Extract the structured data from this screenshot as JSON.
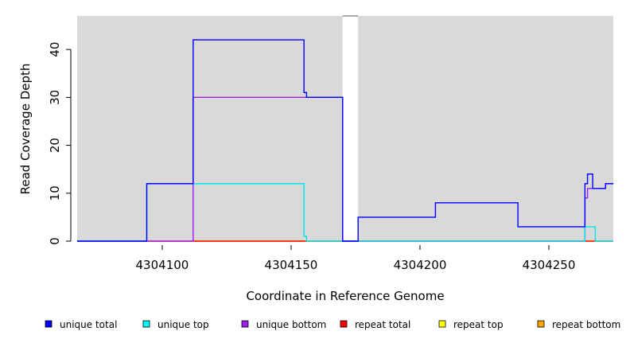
{
  "chart_data": {
    "type": "line",
    "xlabel": "Coordinate in Reference Genome",
    "ylabel": "Read Coverage Depth",
    "xlim": [
      4304067,
      4304275
    ],
    "ylim": [
      0,
      47
    ],
    "x_ticks": [
      4304100,
      4304150,
      4304200,
      4304250
    ],
    "y_ticks": [
      0,
      10,
      20,
      30,
      40
    ],
    "background_color": "#d9d9d9",
    "gap_region": [
      4304170,
      4304176
    ],
    "legend_position": "bottom",
    "series": [
      {
        "name": "unique total",
        "color": "#0000ff",
        "points": [
          [
            4304067,
            0
          ],
          [
            4304094,
            0
          ],
          [
            4304094,
            12
          ],
          [
            4304112,
            12
          ],
          [
            4304112,
            42
          ],
          [
            4304155,
            42
          ],
          [
            4304155,
            31
          ],
          [
            4304156,
            31
          ],
          [
            4304156,
            30
          ],
          [
            4304170,
            30
          ],
          [
            4304170,
            0
          ],
          [
            4304176,
            0
          ],
          [
            4304176,
            5
          ],
          [
            4304206,
            5
          ],
          [
            4304206,
            8
          ],
          [
            4304238,
            8
          ],
          [
            4304238,
            3
          ],
          [
            4304264,
            3
          ],
          [
            4304264,
            12
          ],
          [
            4304265,
            12
          ],
          [
            4304265,
            14
          ],
          [
            4304267,
            14
          ],
          [
            4304267,
            11
          ],
          [
            4304272,
            11
          ],
          [
            4304272,
            12
          ],
          [
            4304275,
            12
          ]
        ]
      },
      {
        "name": "unique top",
        "color": "#00e5e5",
        "points": [
          [
            4304067,
            0
          ],
          [
            4304094,
            0
          ],
          [
            4304094,
            12
          ],
          [
            4304155,
            12
          ],
          [
            4304155,
            1
          ],
          [
            4304156,
            1
          ],
          [
            4304156,
            0
          ],
          [
            4304264,
            0
          ],
          [
            4304264,
            3
          ],
          [
            4304268,
            3
          ],
          [
            4304268,
            0
          ],
          [
            4304275,
            0
          ]
        ]
      },
      {
        "name": "unique bottom",
        "color": "#a020f0",
        "points": [
          [
            4304067,
            0
          ],
          [
            4304112,
            0
          ],
          [
            4304112,
            30
          ],
          [
            4304170,
            30
          ],
          [
            4304170,
            0
          ],
          [
            4304264,
            0
          ],
          [
            4304264,
            9
          ],
          [
            4304265,
            9
          ],
          [
            4304265,
            11
          ],
          [
            4304272,
            11
          ],
          [
            4304272,
            12
          ],
          [
            4304275,
            12
          ]
        ]
      },
      {
        "name": "repeat total",
        "color": "#ff0000",
        "points": [
          [
            4304067,
            0
          ],
          [
            4304275,
            0
          ]
        ]
      },
      {
        "name": "repeat top",
        "color": "#ffff00",
        "points": [
          [
            4304067,
            0
          ],
          [
            4304275,
            0
          ]
        ]
      },
      {
        "name": "repeat bottom",
        "color": "#ffa500",
        "points": [
          [
            4304112,
            0
          ],
          [
            4304155,
            0
          ]
        ]
      }
    ]
  },
  "legend": {
    "items": [
      {
        "label": "unique total",
        "color": "#0000ff"
      },
      {
        "label": "unique top",
        "color": "#00ffff"
      },
      {
        "label": "unique bottom",
        "color": "#a020f0"
      },
      {
        "label": "repeat total",
        "color": "#ff0000"
      },
      {
        "label": "repeat top",
        "color": "#ffff00"
      },
      {
        "label": "repeat bottom",
        "color": "#ffa500"
      }
    ]
  }
}
